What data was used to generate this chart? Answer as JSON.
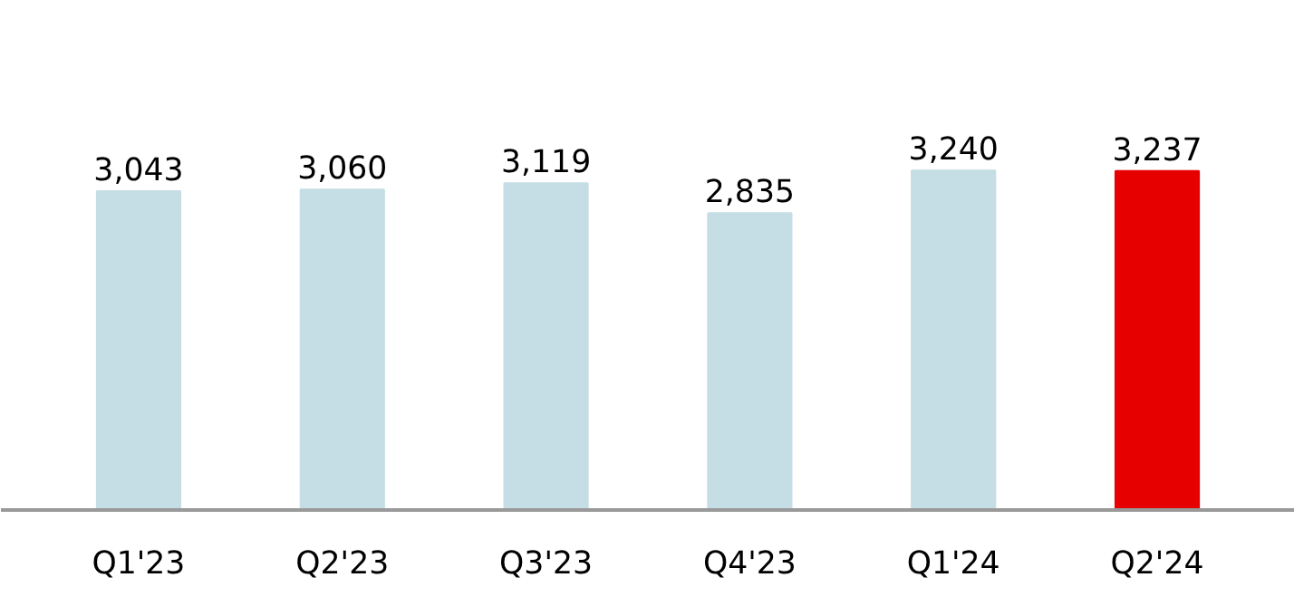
{
  "chart_data": {
    "type": "bar",
    "categories": [
      "Q1'23",
      "Q2'23",
      "Q3'23",
      "Q4'23",
      "Q1'24",
      "Q2'24"
    ],
    "values": [
      3043,
      3060,
      3119,
      2835,
      3240,
      3237
    ],
    "colors": [
      "#c5dde5",
      "#c5dde5",
      "#c5dde5",
      "#c5dde5",
      "#c5dde5",
      "#e60000"
    ],
    "value_labels": [
      "3,043",
      "3,060",
      "3,119",
      "2,835",
      "3,240",
      "3,237"
    ],
    "tick_labels": "x",
    "grid": false
  }
}
